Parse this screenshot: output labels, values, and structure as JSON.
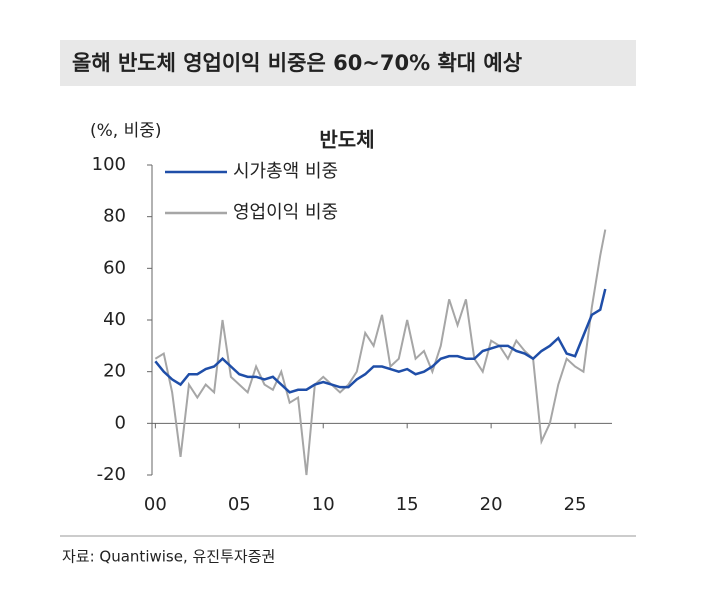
{
  "header": {
    "title": "올해 반도체 영업이익 비중은 60~70% 확대 예상"
  },
  "chart_data": {
    "type": "line",
    "title": "반도체",
    "y_label": "(%, 비중)",
    "x": [
      0,
      0.5,
      1,
      1.5,
      2,
      2.5,
      3,
      3.5,
      4,
      4.5,
      5,
      5.5,
      6,
      6.5,
      7,
      7.5,
      8,
      8.5,
      9,
      9.5,
      10,
      10.5,
      11,
      11.5,
      12,
      12.5,
      13,
      13.5,
      14,
      14.5,
      15,
      15.5,
      16,
      16.5,
      17,
      17.5,
      18,
      18.5,
      19,
      19.5,
      20,
      20.5,
      21,
      21.5,
      22,
      22.5,
      23,
      23.5,
      24,
      24.5,
      25,
      25.5,
      26,
      26.5,
      26.8
    ],
    "series": [
      {
        "name": "시가총액 비중",
        "color": "#1f4ea8",
        "values": [
          24,
          20,
          17,
          15,
          19,
          19,
          21,
          22,
          25,
          22,
          19,
          18,
          18,
          17,
          18,
          15,
          12,
          13,
          13,
          15,
          16,
          15,
          14,
          14,
          17,
          19,
          22,
          22,
          21,
          20,
          21,
          19,
          20,
          22,
          25,
          26,
          26,
          25,
          25,
          28,
          29,
          30,
          30,
          28,
          27,
          25,
          28,
          30,
          33,
          27,
          26,
          34,
          42,
          44,
          52
        ]
      },
      {
        "name": "영업이익 비중",
        "color": "#a6a6a6",
        "values": [
          25,
          27,
          12,
          -13,
          15,
          10,
          15,
          12,
          40,
          18,
          15,
          12,
          22,
          15,
          13,
          20,
          8,
          10,
          -20,
          15,
          18,
          15,
          12,
          15,
          20,
          35,
          30,
          42,
          22,
          25,
          40,
          25,
          28,
          20,
          30,
          48,
          38,
          48,
          25,
          20,
          32,
          30,
          25,
          32,
          28,
          25,
          -7,
          0,
          15,
          25,
          22,
          20,
          45,
          65,
          75
        ]
      }
    ],
    "xlim": [
      -0.2,
      27.2
    ],
    "xticks": [
      {
        "value": 0,
        "label": "00"
      },
      {
        "value": 5,
        "label": "05"
      },
      10,
      15,
      20,
      25
    ],
    "ylim": [
      -20,
      100
    ],
    "yticks": [
      -20,
      0,
      20,
      40,
      60,
      80,
      100
    ]
  },
  "footer": {
    "source": "자료: Quantiwise, 유진투자증권"
  }
}
